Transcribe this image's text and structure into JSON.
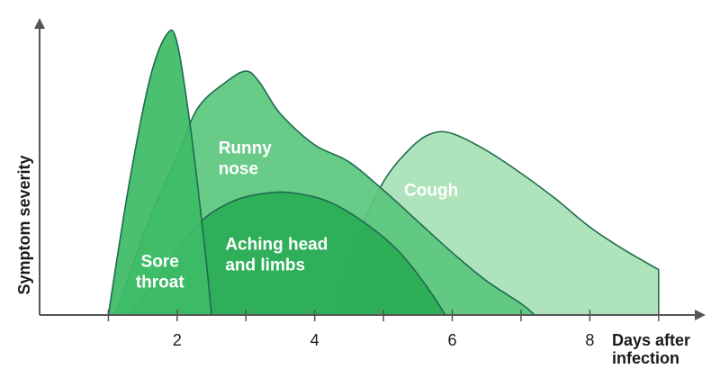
{
  "chart_data": {
    "type": "area",
    "title": "",
    "xlabel": [
      "Days after",
      "infection"
    ],
    "ylabel": "Symptom severity",
    "xlim": [
      0,
      9.5
    ],
    "ylim": [
      0,
      10
    ],
    "x_ticks": [
      1,
      2,
      3,
      4,
      5,
      6,
      7,
      8,
      9
    ],
    "x_tick_labels": [
      {
        "x": 2,
        "label": "2"
      },
      {
        "x": 4,
        "label": "4"
      },
      {
        "x": 6,
        "label": "6"
      },
      {
        "x": 8,
        "label": "8"
      }
    ],
    "grid": false,
    "legend": "none",
    "series": [
      {
        "name": "Cough",
        "label_lines": [
          "Cough"
        ],
        "label_at": {
          "x": 5.3,
          "y": 4.2
        },
        "color": "#a9e1b7",
        "points": [
          [
            4.3,
            0
          ],
          [
            4.6,
            2.6
          ],
          [
            5.0,
            4.7
          ],
          [
            5.4,
            5.9
          ],
          [
            5.7,
            6.4
          ],
          [
            6.0,
            6.4
          ],
          [
            6.5,
            5.8
          ],
          [
            7.0,
            5.0
          ],
          [
            7.5,
            4.1
          ],
          [
            8.0,
            3.1
          ],
          [
            8.5,
            2.3
          ],
          [
            9.0,
            1.6
          ]
        ]
      },
      {
        "name": "Runny nose",
        "label_lines": [
          "Runny",
          "nose"
        ],
        "label_at": {
          "x": 2.6,
          "y": 5.7
        },
        "color": "#5cc77f",
        "points": [
          [
            1.1,
            0
          ],
          [
            1.6,
            3.4
          ],
          [
            2.0,
            5.6
          ],
          [
            2.3,
            7.3
          ],
          [
            2.7,
            8.2
          ],
          [
            3.0,
            8.6
          ],
          [
            3.2,
            8.2
          ],
          [
            3.5,
            7.1
          ],
          [
            4.0,
            6.0
          ],
          [
            4.5,
            5.4
          ],
          [
            5.0,
            4.4
          ],
          [
            5.5,
            3.3
          ],
          [
            6.0,
            2.2
          ],
          [
            6.5,
            1.2
          ],
          [
            7.0,
            0.4
          ],
          [
            7.2,
            0
          ]
        ]
      },
      {
        "name": "Aching head and limbs",
        "label_lines": [
          "Aching head",
          "and limbs"
        ],
        "label_at": {
          "x": 2.7,
          "y": 2.3
        },
        "color": "#2bac55",
        "points": [
          [
            1.3,
            0
          ],
          [
            1.8,
            1.6
          ],
          [
            2.3,
            3.2
          ],
          [
            2.8,
            4.0
          ],
          [
            3.3,
            4.3
          ],
          [
            3.7,
            4.3
          ],
          [
            4.2,
            4.0
          ],
          [
            4.7,
            3.3
          ],
          [
            5.2,
            2.3
          ],
          [
            5.6,
            1.1
          ],
          [
            5.9,
            0
          ]
        ]
      },
      {
        "name": "Sore throat",
        "label_lines": [
          "Sore",
          "throat"
        ],
        "label_at": {
          "x": 1.75,
          "y": 1.7
        },
        "color": "#3dbb66",
        "points": [
          [
            1.0,
            0
          ],
          [
            1.3,
            4.6
          ],
          [
            1.6,
            8.3
          ],
          [
            1.85,
            9.9
          ],
          [
            2.0,
            9.6
          ],
          [
            2.2,
            6.5
          ],
          [
            2.4,
            2.4
          ],
          [
            2.5,
            0
          ]
        ]
      }
    ]
  }
}
